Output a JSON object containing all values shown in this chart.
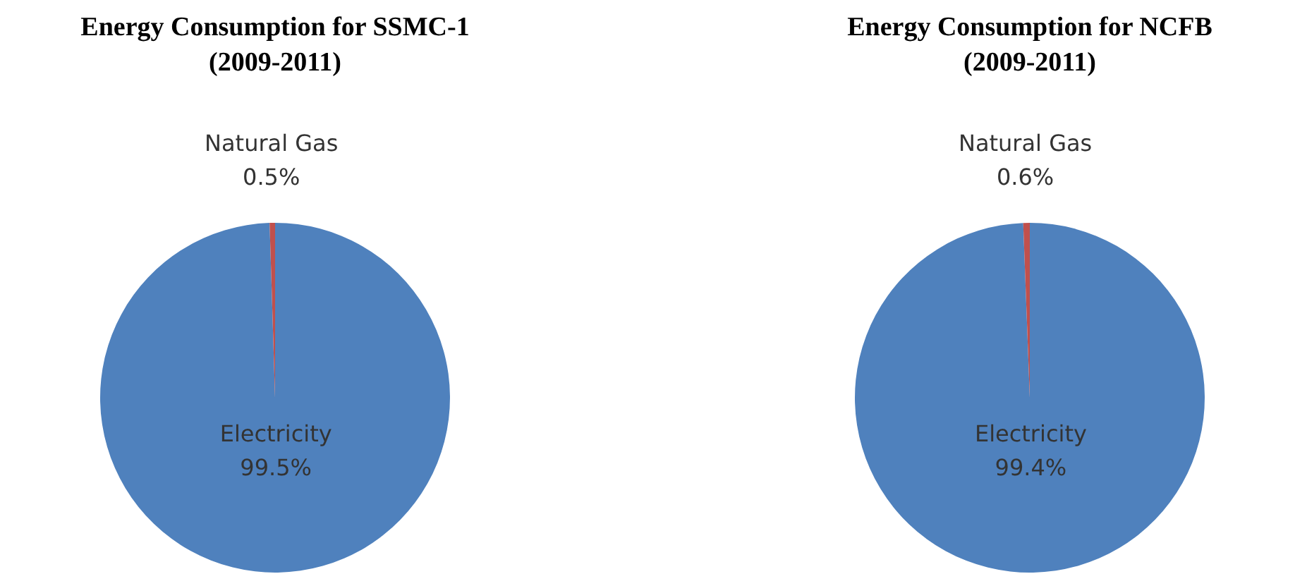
{
  "chart_data": [
    {
      "type": "pie",
      "title": "Energy Consumption for SSMC-1\n(2009-2011)",
      "categories": [
        "Electricity",
        "Natural Gas"
      ],
      "values": [
        99.5,
        0.5
      ],
      "colors": [
        "#4f81bd",
        "#c0504d"
      ],
      "value_labels": [
        "99.5%",
        "0.5%"
      ]
    },
    {
      "type": "pie",
      "title": "Energy Consumption for NCFB\n(2009-2011)",
      "categories": [
        "Electricity",
        "Natural Gas"
      ],
      "values": [
        99.4,
        0.6
      ],
      "colors": [
        "#4f81bd",
        "#c0504d"
      ],
      "value_labels": [
        "99.4%",
        "0.6%"
      ]
    }
  ]
}
